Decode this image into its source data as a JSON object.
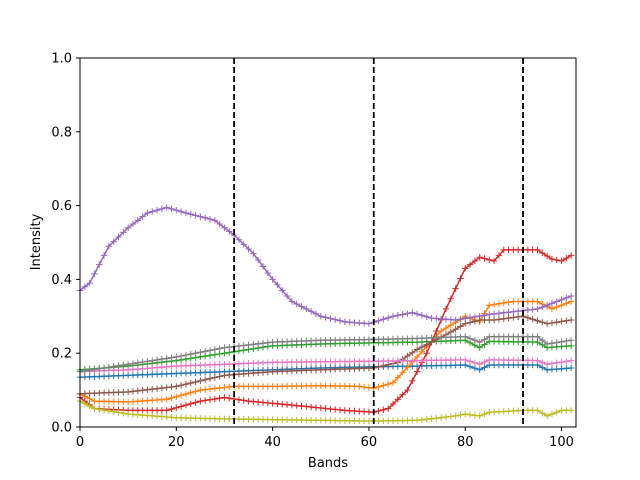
{
  "chart_data": {
    "type": "line",
    "title": "",
    "xlabel": "Bands",
    "ylabel": "Intensity",
    "xlim": [
      0,
      103
    ],
    "ylim": [
      0.0,
      1.0
    ],
    "xticks": [
      0,
      20,
      40,
      60,
      80,
      100
    ],
    "yticks": [
      0.0,
      0.2,
      0.4,
      0.6,
      0.8,
      1.0
    ],
    "xtick_labels": [
      "0",
      "20",
      "40",
      "60",
      "80",
      "100"
    ],
    "ytick_labels": [
      "0.0",
      "0.2",
      "0.4",
      "0.6",
      "0.8",
      "1.0"
    ],
    "grid": false,
    "legend": "none",
    "marker": "+",
    "vlines": [
      32,
      61,
      92
    ],
    "vline_style": "dashed",
    "vline_color": "#000000",
    "series_x_range": [
      0,
      102
    ],
    "series": [
      {
        "color": "#1f77b4",
        "points": [
          [
            0,
            0.135
          ],
          [
            10,
            0.14
          ],
          [
            20,
            0.145
          ],
          [
            30,
            0.15
          ],
          [
            40,
            0.155
          ],
          [
            50,
            0.16
          ],
          [
            60,
            0.163
          ],
          [
            70,
            0.165
          ],
          [
            80,
            0.168
          ],
          [
            83,
            0.155
          ],
          [
            85,
            0.168
          ],
          [
            95,
            0.168
          ],
          [
            97,
            0.155
          ],
          [
            102,
            0.16
          ]
        ]
      },
      {
        "color": "#ff7f0e",
        "points": [
          [
            0,
            0.09
          ],
          [
            3,
            0.07
          ],
          [
            10,
            0.068
          ],
          [
            18,
            0.075
          ],
          [
            25,
            0.1
          ],
          [
            32,
            0.11
          ],
          [
            40,
            0.11
          ],
          [
            50,
            0.112
          ],
          [
            58,
            0.11
          ],
          [
            61,
            0.105
          ],
          [
            65,
            0.12
          ],
          [
            70,
            0.19
          ],
          [
            75,
            0.26
          ],
          [
            80,
            0.3
          ],
          [
            83,
            0.285
          ],
          [
            85,
            0.33
          ],
          [
            90,
            0.34
          ],
          [
            95,
            0.34
          ],
          [
            98,
            0.32
          ],
          [
            102,
            0.34
          ]
        ]
      },
      {
        "color": "#2ca02c",
        "points": [
          [
            0,
            0.155
          ],
          [
            10,
            0.165
          ],
          [
            20,
            0.18
          ],
          [
            30,
            0.2
          ],
          [
            40,
            0.22
          ],
          [
            50,
            0.225
          ],
          [
            60,
            0.228
          ],
          [
            70,
            0.23
          ],
          [
            80,
            0.235
          ],
          [
            83,
            0.215
          ],
          [
            85,
            0.232
          ],
          [
            95,
            0.23
          ],
          [
            97,
            0.215
          ],
          [
            102,
            0.22
          ]
        ]
      },
      {
        "color": "#d62728",
        "points": [
          [
            0,
            0.08
          ],
          [
            3,
            0.05
          ],
          [
            10,
            0.045
          ],
          [
            18,
            0.045
          ],
          [
            25,
            0.07
          ],
          [
            30,
            0.08
          ],
          [
            35,
            0.07
          ],
          [
            45,
            0.058
          ],
          [
            55,
            0.045
          ],
          [
            61,
            0.04
          ],
          [
            64,
            0.05
          ],
          [
            68,
            0.1
          ],
          [
            72,
            0.2
          ],
          [
            76,
            0.32
          ],
          [
            80,
            0.43
          ],
          [
            83,
            0.46
          ],
          [
            86,
            0.45
          ],
          [
            88,
            0.48
          ],
          [
            95,
            0.48
          ],
          [
            98,
            0.455
          ],
          [
            100,
            0.45
          ],
          [
            102,
            0.465
          ]
        ]
      },
      {
        "color": "#9467bd",
        "points": [
          [
            0,
            0.37
          ],
          [
            2,
            0.39
          ],
          [
            6,
            0.49
          ],
          [
            10,
            0.54
          ],
          [
            14,
            0.58
          ],
          [
            18,
            0.595
          ],
          [
            22,
            0.58
          ],
          [
            28,
            0.56
          ],
          [
            32,
            0.52
          ],
          [
            36,
            0.47
          ],
          [
            40,
            0.4
          ],
          [
            44,
            0.34
          ],
          [
            50,
            0.3
          ],
          [
            55,
            0.285
          ],
          [
            60,
            0.28
          ],
          [
            65,
            0.3
          ],
          [
            69,
            0.31
          ],
          [
            73,
            0.295
          ],
          [
            78,
            0.29
          ],
          [
            85,
            0.305
          ],
          [
            95,
            0.32
          ],
          [
            102,
            0.355
          ]
        ]
      },
      {
        "color": "#8c564b",
        "points": [
          [
            0,
            0.09
          ],
          [
            10,
            0.095
          ],
          [
            20,
            0.11
          ],
          [
            30,
            0.14
          ],
          [
            40,
            0.15
          ],
          [
            50,
            0.155
          ],
          [
            61,
            0.16
          ],
          [
            66,
            0.175
          ],
          [
            70,
            0.21
          ],
          [
            76,
            0.25
          ],
          [
            80,
            0.28
          ],
          [
            83,
            0.29
          ],
          [
            86,
            0.29
          ],
          [
            92,
            0.3
          ],
          [
            97,
            0.28
          ],
          [
            102,
            0.29
          ]
        ]
      },
      {
        "color": "#e377c2",
        "points": [
          [
            0,
            0.15
          ],
          [
            10,
            0.155
          ],
          [
            20,
            0.165
          ],
          [
            30,
            0.17
          ],
          [
            40,
            0.175
          ],
          [
            50,
            0.177
          ],
          [
            60,
            0.178
          ],
          [
            70,
            0.18
          ],
          [
            80,
            0.182
          ],
          [
            83,
            0.17
          ],
          [
            85,
            0.182
          ],
          [
            95,
            0.18
          ],
          [
            97,
            0.17
          ],
          [
            102,
            0.18
          ]
        ]
      },
      {
        "color": "#7f7f7f",
        "points": [
          [
            0,
            0.15
          ],
          [
            10,
            0.17
          ],
          [
            20,
            0.19
          ],
          [
            30,
            0.215
          ],
          [
            40,
            0.23
          ],
          [
            50,
            0.235
          ],
          [
            60,
            0.237
          ],
          [
            70,
            0.24
          ],
          [
            80,
            0.245
          ],
          [
            83,
            0.23
          ],
          [
            85,
            0.245
          ],
          [
            95,
            0.245
          ],
          [
            97,
            0.225
          ],
          [
            102,
            0.235
          ]
        ]
      },
      {
        "color": "#bcbd22",
        "points": [
          [
            0,
            0.07
          ],
          [
            3,
            0.05
          ],
          [
            10,
            0.035
          ],
          [
            20,
            0.025
          ],
          [
            30,
            0.022
          ],
          [
            40,
            0.02
          ],
          [
            50,
            0.018
          ],
          [
            60,
            0.016
          ],
          [
            70,
            0.018
          ],
          [
            78,
            0.03
          ],
          [
            80,
            0.035
          ],
          [
            83,
            0.03
          ],
          [
            85,
            0.04
          ],
          [
            92,
            0.045
          ],
          [
            95,
            0.045
          ],
          [
            97,
            0.03
          ],
          [
            100,
            0.045
          ],
          [
            102,
            0.045
          ]
        ]
      }
    ]
  }
}
